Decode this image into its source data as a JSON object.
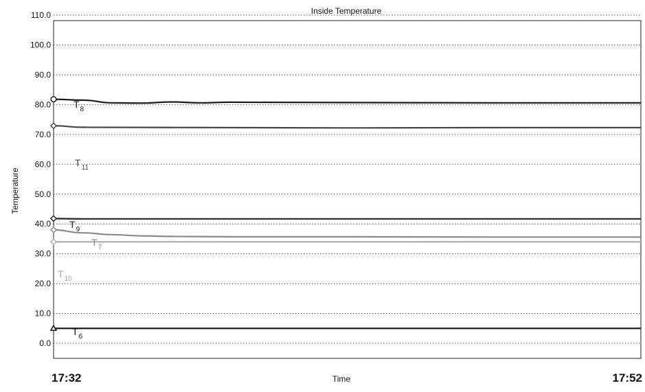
{
  "chart_data": {
    "type": "line",
    "title": "Inside Temperature",
    "xlabel": "Time",
    "ylabel": "Temperature",
    "x_start": "17:32",
    "x_end": "17:52",
    "ylim": [
      0,
      115
    ],
    "y_ticks": [
      0,
      10,
      20,
      30,
      40,
      50,
      60,
      70,
      80,
      90,
      100,
      110
    ],
    "grid": true,
    "series": [
      {
        "name": "T8",
        "label_main": "T",
        "label_sub": "8",
        "color": "#1a1a1a",
        "marker": "circle",
        "x": [
          "17:32",
          "17:33",
          "17:34",
          "17:35",
          "17:36",
          "17:37",
          "17:38",
          "17:42",
          "17:47",
          "17:52"
        ],
        "values": [
          81.8,
          81.5,
          80.6,
          80.5,
          80.9,
          80.6,
          80.8,
          80.7,
          80.6,
          80.6
        ]
      },
      {
        "name": "T11",
        "label_main": "T",
        "label_sub": "11",
        "color": "#444444",
        "marker": "diamond",
        "x": [
          "17:32",
          "17:33",
          "17:38",
          "17:42",
          "17:47",
          "17:52"
        ],
        "values": [
          72.9,
          72.4,
          72.3,
          72.2,
          72.3,
          72.3
        ]
      },
      {
        "name": "T9",
        "label_main": "T",
        "label_sub": "9",
        "color": "#222222",
        "marker": "diamond",
        "x": [
          "17:32",
          "17:33",
          "17:38",
          "17:42",
          "17:47",
          "17:52"
        ],
        "values": [
          41.8,
          41.7,
          41.7,
          41.7,
          41.7,
          41.7
        ]
      },
      {
        "name": "T7",
        "label_main": "T",
        "label_sub": "7",
        "color": "#8a8a8a",
        "marker": "diamond",
        "x": [
          "17:32",
          "17:33",
          "17:34",
          "17:35",
          "17:36",
          "17:38",
          "17:42",
          "17:47",
          "17:52"
        ],
        "values": [
          38.0,
          37.0,
          36.4,
          36.0,
          35.8,
          35.7,
          35.7,
          35.6,
          35.6
        ]
      },
      {
        "name": "T10",
        "label_main": "T",
        "label_sub": "10",
        "color": "#aaaaaa",
        "marker": "diamond",
        "x": [
          "17:32",
          "17:33",
          "17:38",
          "17:42",
          "17:47",
          "17:52"
        ],
        "values": [
          34.0,
          34.0,
          34.0,
          34.0,
          34.0,
          34.0
        ]
      },
      {
        "name": "T6",
        "label_main": "T",
        "label_sub": "6",
        "color": "#111111",
        "marker": "triangle",
        "x": [
          "17:32",
          "17:38",
          "17:42",
          "17:47",
          "17:52"
        ],
        "values": [
          5.0,
          5.0,
          5.0,
          5.0,
          5.0
        ]
      }
    ]
  }
}
